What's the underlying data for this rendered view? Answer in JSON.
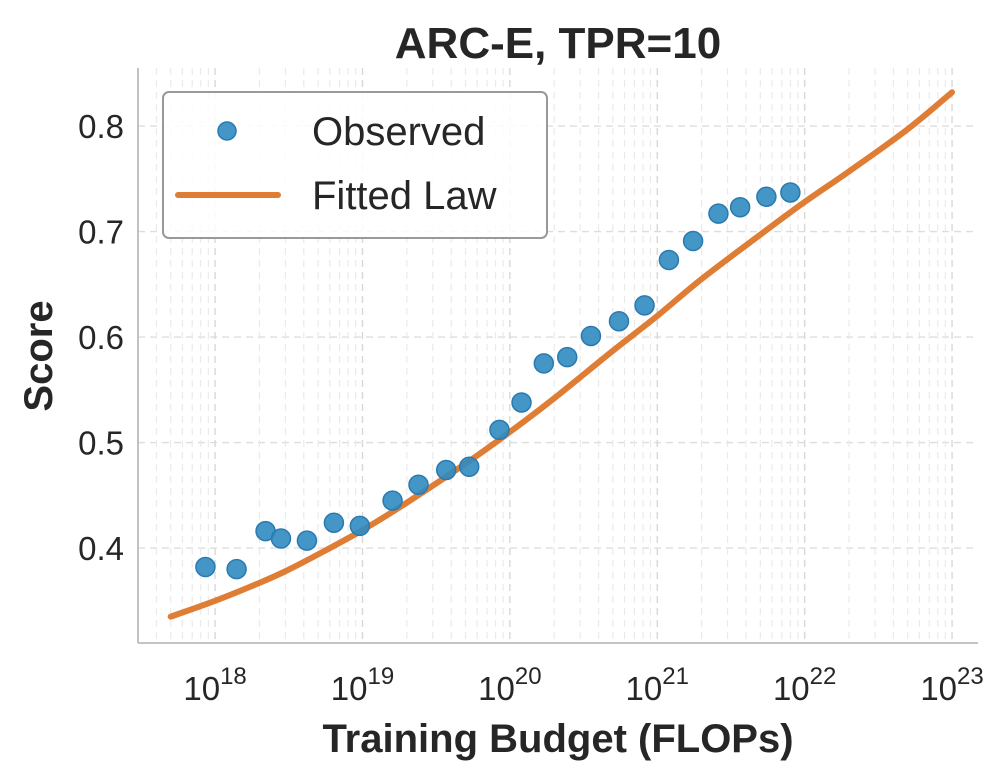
{
  "chart_data": {
    "type": "scatter",
    "title": "ARC-E, TPR=10",
    "xlabel": "Training Budget (FLOPs)",
    "ylabel": "Score",
    "xscale": "log",
    "xlim": [
      3e+17,
      1.5e+23
    ],
    "ylim": [
      0.31,
      0.855
    ],
    "xticks": [
      {
        "base": "10",
        "exp": "18",
        "value": 1e+18
      },
      {
        "base": "10",
        "exp": "19",
        "value": 1e+19
      },
      {
        "base": "10",
        "exp": "20",
        "value": 1e+20
      },
      {
        "base": "10",
        "exp": "21",
        "value": 1e+21
      },
      {
        "base": "10",
        "exp": "22",
        "value": 1e+22
      },
      {
        "base": "10",
        "exp": "23",
        "value": 1e+23
      }
    ],
    "yticks": [
      "0.4",
      "0.5",
      "0.6",
      "0.7",
      "0.8"
    ],
    "grid": true,
    "legend": {
      "position": "top-left"
    },
    "series": [
      {
        "name": "Observed",
        "kind": "scatter",
        "color": "#2f8bc0",
        "x": [
          8.6e+17,
          1.4e+18,
          2.2e+18,
          2.8e+18,
          4.2e+18,
          6.4e+18,
          9.6e+18,
          1.6e+19,
          2.4e+19,
          3.7e+19,
          5.3e+19,
          8.5e+19,
          1.2e+20,
          1.7e+20,
          2.45e+20,
          3.55e+20,
          5.5e+20,
          8.2e+20,
          1.2e+21,
          1.75e+21,
          2.6e+21,
          3.65e+21,
          5.5e+21,
          8e+21
        ],
        "y": [
          0.382,
          0.38,
          0.416,
          0.409,
          0.407,
          0.424,
          0.421,
          0.445,
          0.46,
          0.474,
          0.477,
          0.512,
          0.538,
          0.575,
          0.581,
          0.601,
          0.615,
          0.63,
          0.673,
          0.691,
          0.717,
          0.723,
          0.733,
          0.737
        ]
      },
      {
        "name": "Fitted Law",
        "kind": "line",
        "color": "#e07d35",
        "x": [
          5e+17,
          1e+18,
          2e+18,
          3e+18,
          5e+18,
          1e+19,
          2e+19,
          5e+19,
          1e+20,
          2e+20,
          5e+20,
          1e+21,
          2e+21,
          5e+21,
          1e+22,
          2e+22,
          5e+22,
          1e+23
        ],
        "y": [
          0.335,
          0.35,
          0.367,
          0.378,
          0.394,
          0.417,
          0.443,
          0.48,
          0.51,
          0.542,
          0.587,
          0.62,
          0.655,
          0.697,
          0.728,
          0.757,
          0.797,
          0.832
        ]
      }
    ]
  }
}
